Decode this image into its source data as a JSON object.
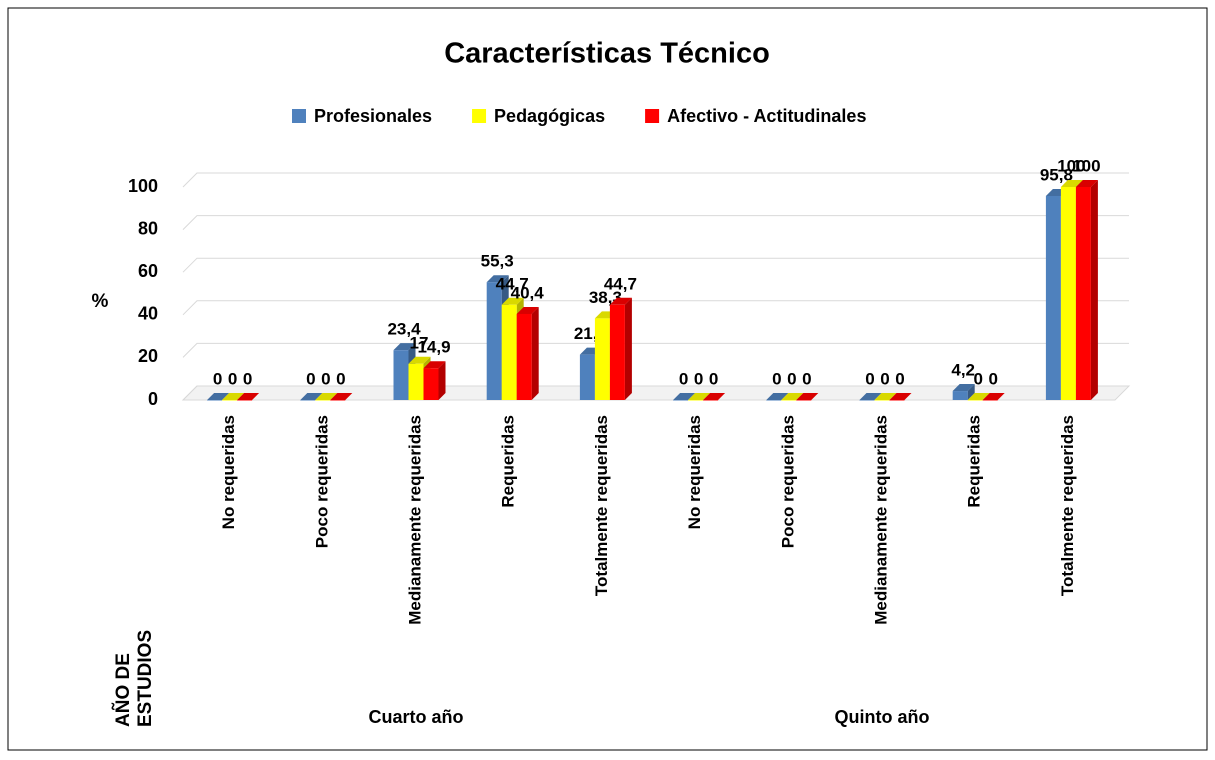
{
  "chart_data": {
    "type": "bar3d",
    "title": "Características Técnico",
    "categories": [
      "No requeridas",
      "Poco requeridas",
      "Medianamente requeridas",
      "Requeridas",
      "Totalmente requeridas",
      "No requeridas",
      "Poco requeridas",
      "Medianamente requeridas",
      "Requeridas",
      "Totalmente requeridas"
    ],
    "group_labels": [
      "Cuarto año",
      "Quinto año"
    ],
    "series": [
      {
        "name": "Profesionales",
        "color": "#4f81bd",
        "values": [
          0,
          0,
          23.4,
          55.3,
          21.3,
          0,
          0,
          0,
          4.2,
          95.8
        ],
        "value_labels": [
          "0",
          "0",
          "23,4",
          "55,3",
          "21,3",
          "0",
          "0",
          "0",
          "4,2",
          "95,8"
        ]
      },
      {
        "name": "Pedagógicas",
        "color": "#ffff00",
        "values": [
          0,
          0,
          17,
          44.7,
          38.3,
          0,
          0,
          0,
          0,
          100
        ],
        "value_labels": [
          "0",
          "0",
          "17",
          "44,7",
          "38,3",
          "0",
          "0",
          "0",
          "0",
          "100"
        ]
      },
      {
        "name": "Afectivo - Actitudinales",
        "color": "#ff0000",
        "values": [
          0,
          0,
          14.9,
          40.4,
          44.7,
          0,
          0,
          0,
          0,
          100
        ],
        "value_labels": [
          "0",
          "0",
          "14,9",
          "40,4",
          "44,7",
          "0",
          "0",
          "0",
          "0",
          "100"
        ]
      }
    ],
    "y_label": "%",
    "x_label": "AÑO DE ESTUDIOS",
    "ylim": [
      0,
      100
    ],
    "yticks": [
      0,
      20,
      40,
      60,
      80,
      100
    ],
    "grid": true,
    "legend": "top"
  }
}
